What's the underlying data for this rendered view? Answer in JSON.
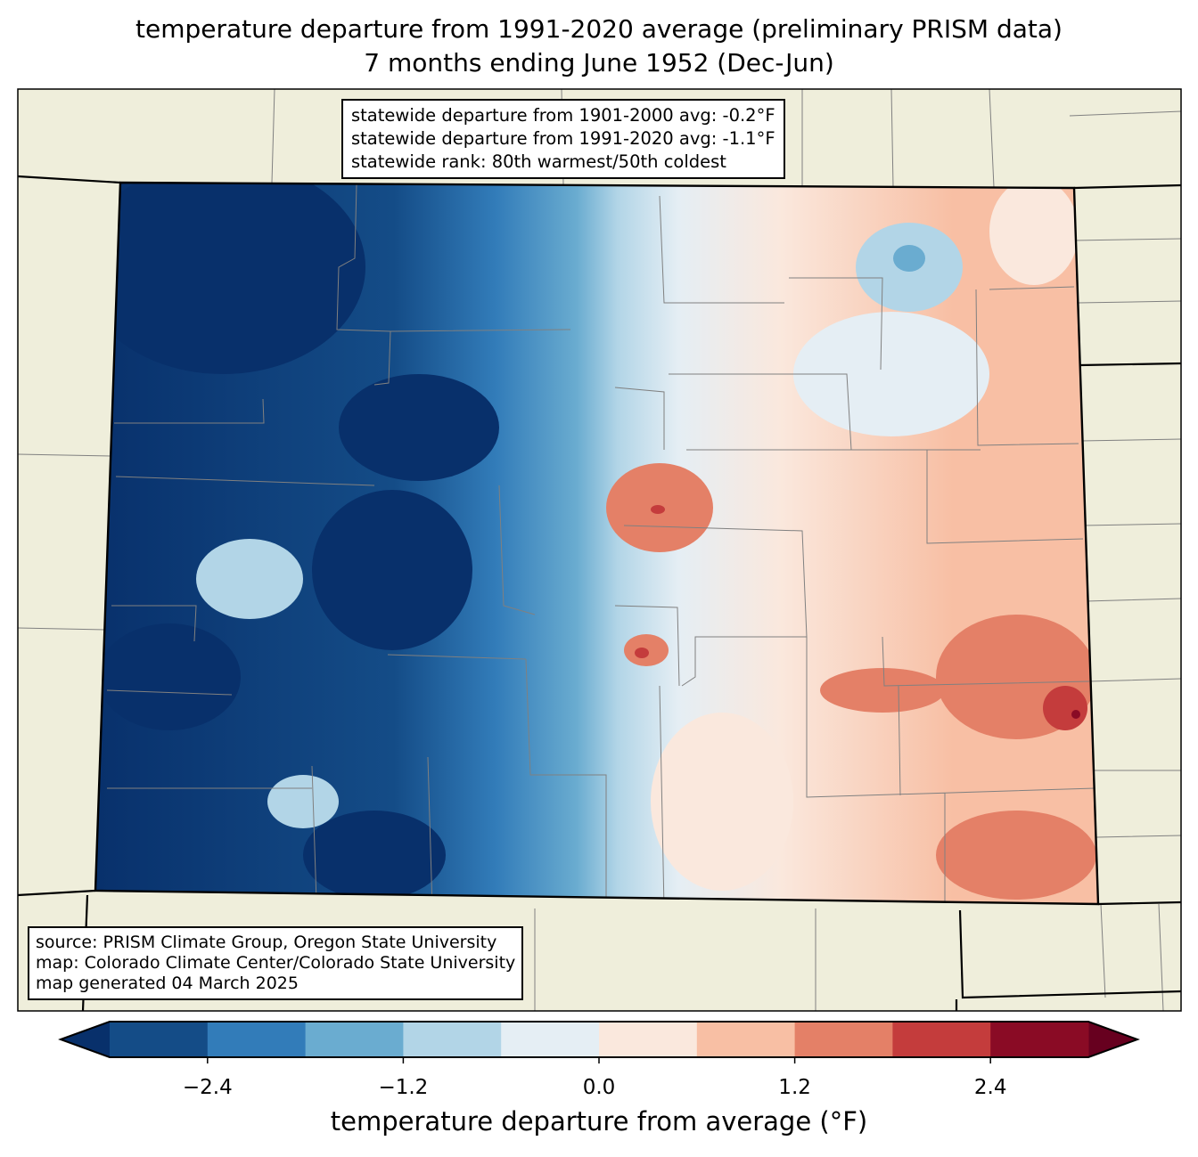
{
  "title": {
    "line1": "temperature departure from 1991-2020 average (preliminary PRISM data)",
    "line2": "7 months ending June 1952 (Dec-Jun)"
  },
  "stats_box": {
    "line1": "statewide departure from 1901-2000 avg: -0.2°F",
    "line2": "statewide departure from 1991-2020 avg: -1.1°F",
    "line3": "statewide rank: 80th warmest/50th coldest"
  },
  "source_box": {
    "line1": "source: PRISM Climate Group, Oregon State University",
    "line2": "map: Colorado Climate Center/Colorado State University",
    "line3": "map generated 04 March 2025"
  },
  "colorbar": {
    "label": "temperature departure from average (°F)",
    "range": [
      -3.0,
      3.0
    ],
    "bin_edges": [
      -3.0,
      -2.4,
      -1.8,
      -1.2,
      -0.6,
      0.0,
      0.6,
      1.2,
      1.8,
      2.4,
      3.0
    ],
    "colors": [
      "#144c87",
      "#327cb9",
      "#6aacd0",
      "#b2d5e7",
      "#e5eef4",
      "#fae8dd",
      "#f8bfa4",
      "#e48067",
      "#c43c3c",
      "#8a0b25"
    ],
    "under_color": "#08306b",
    "over_color": "#67001f",
    "ticks": [
      {
        "value": -2.4,
        "label": "−2.4"
      },
      {
        "value": -1.2,
        "label": "−1.2"
      },
      {
        "value": 0.0,
        "label": "0.0"
      },
      {
        "value": 1.2,
        "label": "1.2"
      },
      {
        "value": 2.4,
        "label": "2.4"
      }
    ]
  },
  "colors": {
    "land": "#efeedb",
    "border": "#000000",
    "county": "#808080"
  }
}
